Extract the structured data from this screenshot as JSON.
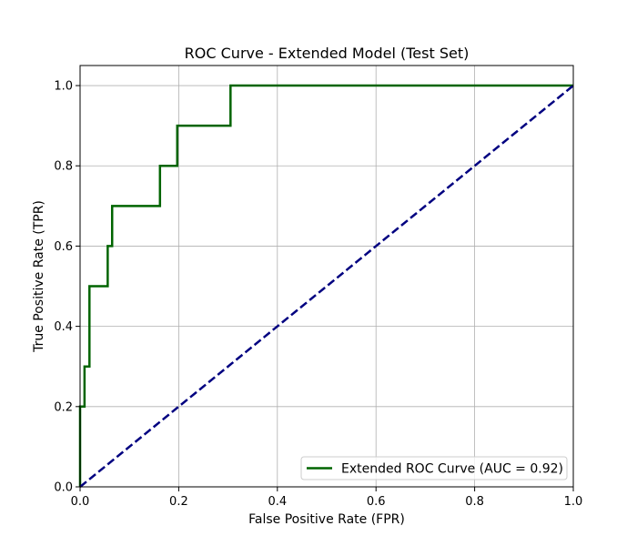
{
  "chart_data": {
    "type": "line",
    "title": "ROC Curve - Extended Model (Test Set)",
    "xlabel": "False Positive Rate (FPR)",
    "ylabel": "True Positive Rate (TPR)",
    "xlim": [
      0.0,
      1.0
    ],
    "ylim": [
      0.0,
      1.05
    ],
    "x_ticks": [
      "0.0",
      "0.2",
      "0.4",
      "0.6",
      "0.8",
      "1.0"
    ],
    "y_ticks": [
      "0.0",
      "0.2",
      "0.4",
      "0.6",
      "0.8",
      "1.0"
    ],
    "grid": true,
    "legend_position": "lower-right",
    "series": [
      {
        "name": "Extended ROC Curve (AUC = 0.92)",
        "color": "#006400",
        "style": "solid",
        "x": [
          0.0,
          0.0,
          0.0,
          0.009,
          0.009,
          0.019,
          0.019,
          0.056,
          0.056,
          0.065,
          0.065,
          0.162,
          0.162,
          0.197,
          0.197,
          0.305,
          0.305,
          1.0
        ],
        "y": [
          0.0,
          0.1,
          0.2,
          0.2,
          0.3,
          0.3,
          0.5,
          0.5,
          0.6,
          0.6,
          0.7,
          0.7,
          0.8,
          0.8,
          0.9,
          0.9,
          1.0,
          1.0
        ]
      },
      {
        "color": "#000080",
        "style": "dashed",
        "x": [
          0.0,
          1.0
        ],
        "y": [
          0.0,
          1.0
        ]
      }
    ]
  }
}
